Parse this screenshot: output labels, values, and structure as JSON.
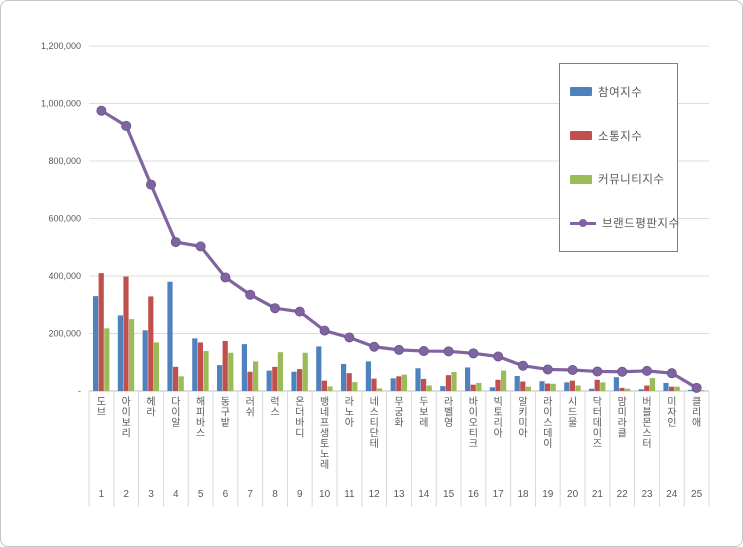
{
  "legend": {
    "items": [
      {
        "label": "참여지수",
        "type": "bar",
        "color": "#4F81BD"
      },
      {
        "label": "소통지수",
        "type": "bar",
        "color": "#C0504D"
      },
      {
        "label": "커뮤니티지수",
        "type": "bar",
        "color": "#9BBB59"
      },
      {
        "label": "브랜드평판지수",
        "type": "line",
        "color": "#8064A2"
      }
    ]
  },
  "chart_data": {
    "type": "bar",
    "subtype": "grouped bars with overlay line",
    "title": "",
    "xlabel": "",
    "ylabel": "",
    "categories": [
      "도브",
      "아이보리",
      "헤라",
      "다이알",
      "해피바스",
      "동구밭",
      "러쉬",
      "럭스",
      "온더바디",
      "뱅네프생토노레",
      "라노아",
      "네스티단테",
      "무궁화",
      "두보레",
      "라벨영",
      "바이오티크",
      "빅토리아",
      "알키미아",
      "라이스데이",
      "시드물",
      "닥터데이즈",
      "맘미라클",
      "버블몬스터",
      "미자인",
      "클리애"
    ],
    "ranks": [
      "1",
      "2",
      "3",
      "4",
      "5",
      "6",
      "7",
      "8",
      "9",
      "10",
      "11",
      "12",
      "13",
      "14",
      "15",
      "16",
      "17",
      "18",
      "19",
      "20",
      "21",
      "22",
      "23",
      "24",
      "25"
    ],
    "series": [
      {
        "name": "참여지수",
        "type": "bar",
        "color": "#4F81BD",
        "values": [
          330000,
          263000,
          211000,
          380000,
          183000,
          90000,
          163000,
          71000,
          67000,
          155000,
          94000,
          103000,
          44000,
          79000,
          17000,
          82000,
          13000,
          52000,
          34000,
          30000,
          8000,
          48000,
          6000,
          28000,
          4000
        ]
      },
      {
        "name": "소통지수",
        "type": "bar",
        "color": "#C0504D",
        "values": [
          410000,
          398000,
          329000,
          84000,
          169000,
          174000,
          67000,
          84000,
          76000,
          36000,
          62000,
          43000,
          51000,
          42000,
          55000,
          22000,
          39000,
          33000,
          26000,
          36000,
          39000,
          11000,
          19000,
          15000,
          4000
        ]
      },
      {
        "name": "커뮤니티지수",
        "type": "bar",
        "color": "#9BBB59",
        "values": [
          218000,
          250000,
          169000,
          51000,
          139000,
          133000,
          103000,
          135000,
          133000,
          16000,
          31000,
          9000,
          57000,
          19000,
          66000,
          28000,
          71000,
          15000,
          25000,
          19000,
          30000,
          8000,
          45000,
          15000,
          3000
        ]
      },
      {
        "name": "브랜드평판지수",
        "type": "line",
        "color": "#8064A2",
        "marker": "circle",
        "values": [
          975000,
          922000,
          718000,
          518000,
          503000,
          395000,
          335000,
          288000,
          276000,
          210000,
          186000,
          154000,
          143000,
          139000,
          138000,
          131000,
          120000,
          88000,
          75000,
          73000,
          68000,
          67000,
          70000,
          62000,
          11000
        ]
      }
    ],
    "y_axis": {
      "min": 0,
      "max": 1200000,
      "step": 200000,
      "tick_labels": [
        "1,200,000",
        "1,000,000",
        "800,000",
        "600,000",
        "400,000",
        "200,000",
        "-"
      ]
    },
    "grid": true,
    "legend_position": "top-right",
    "colors": {
      "grid_line": "#dcdcdc",
      "axis_line": "#bfbfbf",
      "separator_line": "#d9d9d9",
      "tick_text": "#595959"
    }
  }
}
